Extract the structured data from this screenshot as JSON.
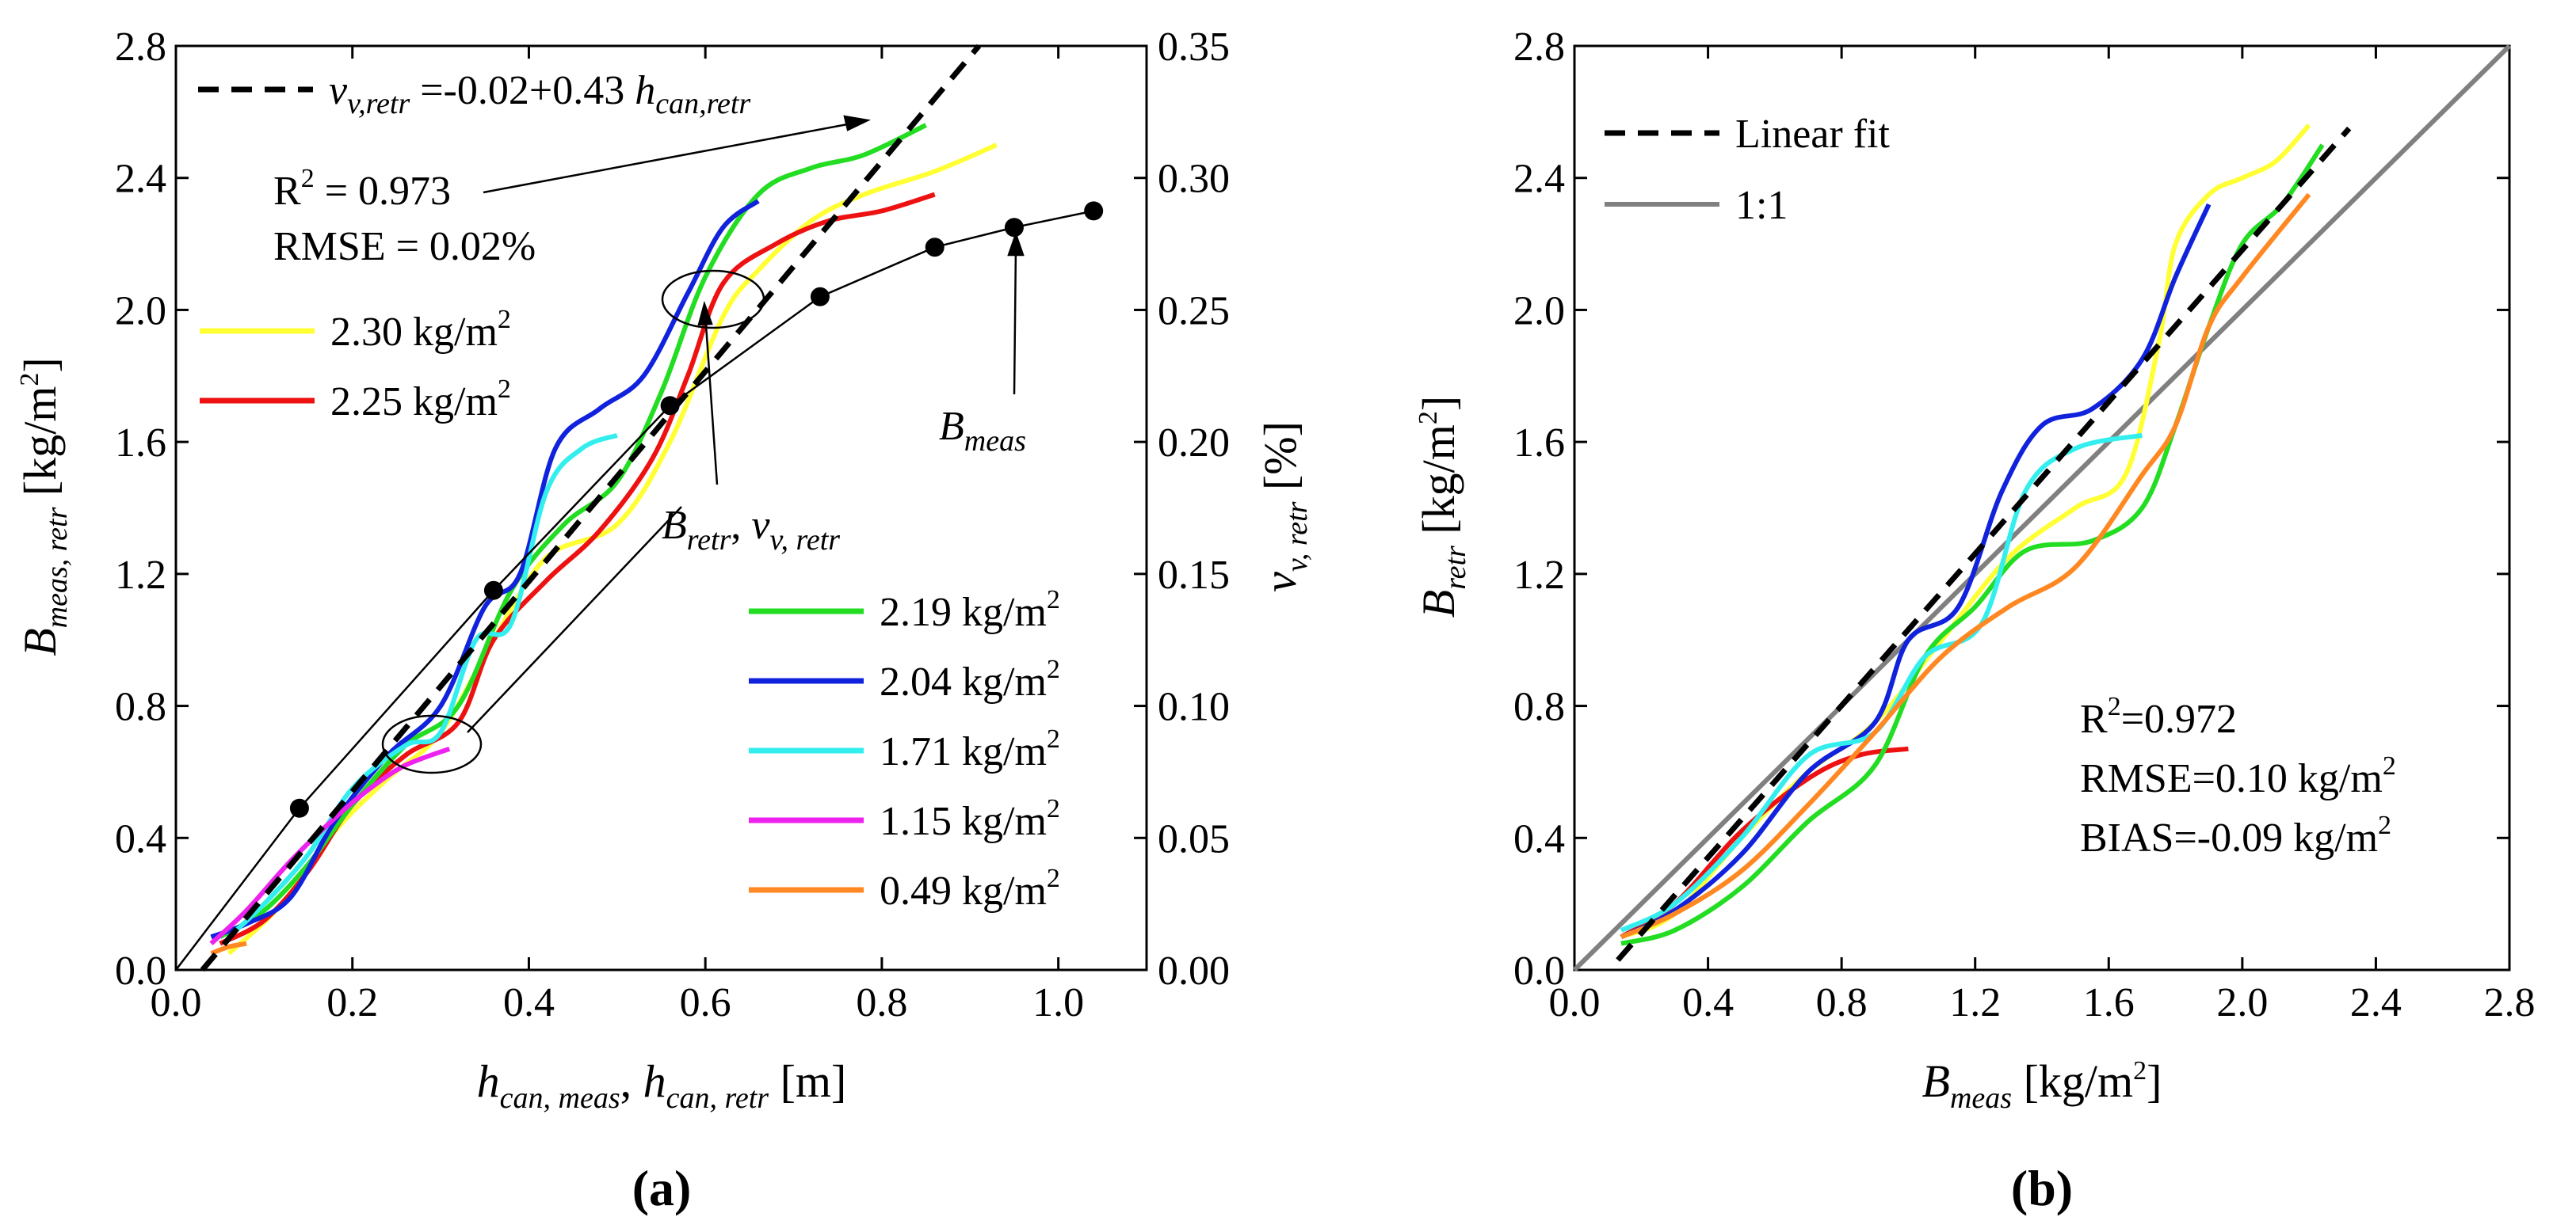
{
  "chart_data": [
    {
      "type": "line",
      "panel_label": "(a)",
      "xlabel": {
        "main": "h",
        "sub1": "can, meas",
        "sep": ", ",
        "main2": "h",
        "sub2": "can, retr",
        "unit": " [m]"
      },
      "ylabel": {
        "main": "B",
        "sub": "meas, retr",
        "unit": " [kg/m",
        "sup": "2",
        "close": "]"
      },
      "y2label": {
        "main": "v",
        "sub": "v, retr",
        "unit": " [%]"
      },
      "xlim": [
        0,
        1.1
      ],
      "ylim": [
        0,
        2.8
      ],
      "y2lim": [
        0,
        0.35
      ],
      "xticks": [
        "0.0",
        "0.2",
        "0.4",
        "0.6",
        "0.8",
        "1.0"
      ],
      "xtick_values": [
        0.0,
        0.2,
        0.4,
        0.6,
        0.8,
        1.0
      ],
      "yticks": [
        "0.0",
        "0.4",
        "0.8",
        "1.2",
        "1.6",
        "2.0",
        "2.4",
        "2.8"
      ],
      "ytick_values": [
        0.0,
        0.4,
        0.8,
        1.2,
        1.6,
        2.0,
        2.4,
        2.8
      ],
      "y2ticks": [
        "0.00",
        "0.05",
        "0.10",
        "0.15",
        "0.20",
        "0.25",
        "0.30",
        "0.35"
      ],
      "y2tick_values": [
        0.0,
        0.05,
        0.1,
        0.15,
        0.2,
        0.25,
        0.3,
        0.35
      ],
      "fit": {
        "label_prefix": "v",
        "label_sub": "v,retr",
        "label_mid": " =-0.02+0.43 ",
        "label_var": "h",
        "label_var_sub": "can,retr",
        "r2_label": "R",
        "r2_sup": "2",
        "r2_value": " = 0.973",
        "rmse_label": "RMSE = 0.02%",
        "x": [
          0.03,
          0.91
        ],
        "y": [
          0.0,
          2.8
        ]
      },
      "measured": {
        "label": "B",
        "label_sub": "meas",
        "x": [
          0.14,
          0.36,
          0.56,
          0.73,
          0.86,
          0.95,
          1.04
        ],
        "y": [
          0.49,
          1.15,
          1.71,
          2.04,
          2.19,
          2.25,
          2.3
        ]
      },
      "retr_label": {
        "b": "B",
        "b_sub": "retr",
        "sep": ", ",
        "v": "v",
        "v_sub": "v, retr"
      },
      "series": [
        {
          "name": "2.30 kg/m",
          "sup": "2",
          "color": "#ffff33",
          "x": [
            0.06,
            0.12,
            0.18,
            0.24,
            0.3,
            0.36,
            0.42,
            0.5,
            0.56,
            0.62,
            0.66,
            0.72,
            0.78,
            0.86,
            0.93
          ],
          "y": [
            0.05,
            0.2,
            0.42,
            0.58,
            0.72,
            1.0,
            1.25,
            1.35,
            1.6,
            1.98,
            2.12,
            2.27,
            2.35,
            2.42,
            2.5
          ]
        },
        {
          "name": "2.25 kg/m",
          "sup": "2",
          "color": "#ee1111",
          "x": [
            0.05,
            0.1,
            0.15,
            0.2,
            0.26,
            0.32,
            0.36,
            0.42,
            0.48,
            0.54,
            0.58,
            0.62,
            0.68,
            0.74,
            0.8,
            0.86
          ],
          "y": [
            0.08,
            0.15,
            0.3,
            0.5,
            0.65,
            0.75,
            1.0,
            1.18,
            1.33,
            1.55,
            1.8,
            2.08,
            2.2,
            2.27,
            2.3,
            2.35
          ]
        },
        {
          "name": "2.19 kg/m",
          "sup": "2",
          "color": "#22dd22",
          "x": [
            0.05,
            0.1,
            0.15,
            0.2,
            0.26,
            0.32,
            0.38,
            0.44,
            0.5,
            0.55,
            0.6,
            0.66,
            0.72,
            0.78,
            0.85
          ],
          "y": [
            0.1,
            0.18,
            0.32,
            0.5,
            0.68,
            0.8,
            1.15,
            1.35,
            1.48,
            1.75,
            2.1,
            2.35,
            2.43,
            2.47,
            2.56
          ]
        },
        {
          "name": "2.04 kg/m",
          "sup": "2",
          "color": "#1122dd",
          "x": [
            0.04,
            0.08,
            0.13,
            0.18,
            0.24,
            0.3,
            0.35,
            0.39,
            0.43,
            0.48,
            0.53,
            0.58,
            0.62,
            0.66
          ],
          "y": [
            0.1,
            0.14,
            0.22,
            0.45,
            0.65,
            0.8,
            1.1,
            1.2,
            1.58,
            1.7,
            1.8,
            2.05,
            2.25,
            2.33
          ]
        },
        {
          "name": "1.71 kg/m",
          "sup": "2",
          "color": "#33eeee",
          "x": [
            0.06,
            0.1,
            0.15,
            0.2,
            0.26,
            0.3,
            0.34,
            0.38,
            0.42,
            0.46,
            0.5
          ],
          "y": [
            0.1,
            0.2,
            0.35,
            0.55,
            0.68,
            0.72,
            1.0,
            1.05,
            1.45,
            1.58,
            1.62
          ]
        },
        {
          "name": "1.15 kg/m",
          "sup": "2",
          "color": "#ee22ee",
          "x": [
            0.04,
            0.08,
            0.13,
            0.18,
            0.22,
            0.26,
            0.31
          ],
          "y": [
            0.08,
            0.18,
            0.33,
            0.46,
            0.55,
            0.62,
            0.67
          ]
        },
        {
          "name": "0.49 kg/m",
          "sup": "2",
          "color": "#ff8822",
          "x": [
            0.04,
            0.06,
            0.08
          ],
          "y": [
            0.05,
            0.07,
            0.08
          ]
        }
      ]
    },
    {
      "type": "line",
      "panel_label": "(b)",
      "xlabel": {
        "main": "B",
        "sub": "meas",
        "unit": " [kg/m",
        "sup": "2",
        "close": "]"
      },
      "ylabel": {
        "main": "B",
        "sub": "retr",
        "unit": " [kg/m",
        "sup": "2",
        "close": "]"
      },
      "xlim": [
        0,
        2.8
      ],
      "ylim": [
        0,
        2.8
      ],
      "xticks": [
        "0.0",
        "0.4",
        "0.8",
        "1.2",
        "1.6",
        "2.0",
        "2.4",
        "2.8"
      ],
      "xtick_values": [
        0.0,
        0.4,
        0.8,
        1.2,
        1.6,
        2.0,
        2.4,
        2.8
      ],
      "yticks": [
        "0.0",
        "0.4",
        "0.8",
        "1.2",
        "1.6",
        "2.0",
        "2.4",
        "2.8"
      ],
      "ytick_values": [
        0.0,
        0.4,
        0.8,
        1.2,
        1.6,
        2.0,
        2.4,
        2.8
      ],
      "legend": [
        {
          "name": "Linear fit",
          "color": "#000000",
          "dash": true
        },
        {
          "name": "1:1",
          "color": "#808080",
          "dash": false
        }
      ],
      "fit": {
        "x": [
          0.13,
          2.32
        ],
        "y": [
          0.03,
          2.55
        ]
      },
      "one_to_one": {
        "x": [
          0.0,
          2.8
        ],
        "y": [
          0.0,
          2.8
        ]
      },
      "stats": {
        "r2_label": "R",
        "r2_sup": "2",
        "r2_value": "=0.972",
        "rmse_label": "RMSE=0.10 kg/m",
        "rmse_sup": "2",
        "bias_label": "BIAS=-0.09 kg/m",
        "bias_sup": "2"
      },
      "series": [
        {
          "name": "2.30 kg/m2",
          "color": "#ffff33",
          "x": [
            0.14,
            0.3,
            0.5,
            0.7,
            0.9,
            1.1,
            1.3,
            1.5,
            1.65,
            1.75,
            1.8,
            1.9,
            2.0,
            2.1,
            2.2
          ],
          "y": [
            0.1,
            0.17,
            0.4,
            0.6,
            0.75,
            1.0,
            1.25,
            1.4,
            1.5,
            1.9,
            2.2,
            2.35,
            2.4,
            2.45,
            2.56
          ]
        },
        {
          "name": "2.25 kg/m2",
          "color": "#ee1111",
          "x": [
            0.14,
            0.3,
            0.5,
            0.7,
            0.85,
            1.0
          ],
          "y": [
            0.1,
            0.2,
            0.42,
            0.58,
            0.65,
            0.67
          ]
        },
        {
          "name": "2.19 kg/m2",
          "color": "#22dd22",
          "x": [
            0.14,
            0.3,
            0.5,
            0.7,
            0.9,
            1.05,
            1.2,
            1.35,
            1.55,
            1.7,
            1.8,
            1.9,
            2.0,
            2.12,
            2.24
          ],
          "y": [
            0.08,
            0.12,
            0.25,
            0.45,
            0.62,
            0.95,
            1.1,
            1.27,
            1.3,
            1.4,
            1.65,
            1.95,
            2.2,
            2.32,
            2.5
          ]
        },
        {
          "name": "2.04 kg/m2",
          "color": "#1122dd",
          "x": [
            0.14,
            0.3,
            0.5,
            0.7,
            0.9,
            1.0,
            1.15,
            1.28,
            1.4,
            1.55,
            1.7,
            1.8,
            1.9
          ],
          "y": [
            0.1,
            0.18,
            0.35,
            0.6,
            0.75,
            1.0,
            1.1,
            1.45,
            1.65,
            1.7,
            1.85,
            2.1,
            2.32
          ]
        },
        {
          "name": "1.71 kg/m2",
          "color": "#33eeee",
          "x": [
            0.14,
            0.3,
            0.5,
            0.7,
            0.9,
            1.05,
            1.22,
            1.35,
            1.5,
            1.7
          ],
          "y": [
            0.12,
            0.2,
            0.4,
            0.65,
            0.72,
            0.95,
            1.05,
            1.45,
            1.58,
            1.62
          ]
        },
        {
          "name": "0.49 kg/m2",
          "color": "#ff8822",
          "x": [
            0.14,
            0.3,
            0.5,
            0.7,
            0.9,
            1.1,
            1.3,
            1.5,
            1.7,
            1.8,
            1.9,
            2.0,
            2.2
          ],
          "y": [
            0.1,
            0.17,
            0.3,
            0.5,
            0.72,
            0.95,
            1.1,
            1.22,
            1.5,
            1.65,
            1.95,
            2.1,
            2.35
          ]
        }
      ]
    }
  ]
}
